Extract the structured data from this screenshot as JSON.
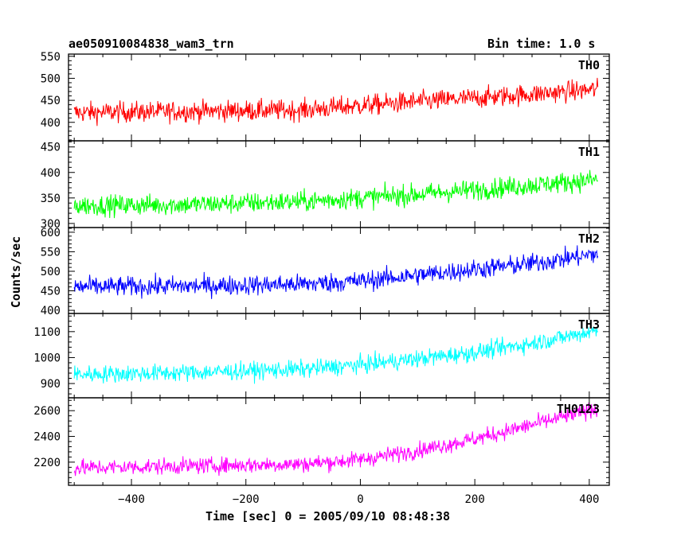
{
  "header": {
    "object": "ae050910084838_wam3_trn",
    "bin_time": "Bin time: 1.0 s"
  },
  "axes": {
    "xlabel": "Time [sec] 0 = 2005/09/10 08:48:38",
    "ylabel": "Counts/sec"
  },
  "chart_data": {
    "type": "line",
    "title": "ae050910084838_wam3_trn",
    "subtitle": "Bin time: 1.0 s",
    "xlabel": "Time [sec] 0 = 2005/09/10 08:48:38",
    "ylabel": "Counts/sec",
    "xlim": [
      -510,
      435
    ],
    "x_ticks": [
      -400,
      -200,
      0,
      200,
      400
    ],
    "x_range_data": [
      -500,
      415
    ],
    "panels": [
      {
        "name": "TH0",
        "color": "#ff0000",
        "ylim": [
          358,
          555
        ],
        "y_ticks": [
          400,
          450,
          500,
          550
        ],
        "trend": [
          [
            -500,
            422
          ],
          [
            -300,
            425
          ],
          [
            -100,
            428
          ],
          [
            0,
            438
          ],
          [
            100,
            447
          ],
          [
            200,
            455
          ],
          [
            300,
            464
          ],
          [
            415,
            475
          ]
        ],
        "noise_amplitude": 28
      },
      {
        "name": "TH1",
        "color": "#00ff00",
        "ylim": [
          292,
          462
        ],
        "y_ticks": [
          300,
          350,
          400,
          450
        ],
        "trend": [
          [
            -500,
            335
          ],
          [
            -300,
            337
          ],
          [
            -100,
            343
          ],
          [
            0,
            350
          ],
          [
            100,
            357
          ],
          [
            200,
            366
          ],
          [
            300,
            375
          ],
          [
            415,
            386
          ]
        ],
        "noise_amplitude": 24
      },
      {
        "name": "TH2",
        "color": "#0000ff",
        "ylim": [
          392,
          612
        ],
        "y_ticks": [
          400,
          450,
          500,
          550,
          600
        ],
        "trend": [
          [
            -500,
            460
          ],
          [
            -300,
            462
          ],
          [
            -100,
            467
          ],
          [
            0,
            475
          ],
          [
            100,
            490
          ],
          [
            200,
            505
          ],
          [
            300,
            520
          ],
          [
            415,
            545
          ]
        ],
        "noise_amplitude": 30
      },
      {
        "name": "TH3",
        "color": "#00ffff",
        "ylim": [
          845,
          1170
        ],
        "y_ticks": [
          900,
          1000,
          1100
        ],
        "trend": [
          [
            -500,
            935
          ],
          [
            -300,
            942
          ],
          [
            -100,
            955
          ],
          [
            0,
            972
          ],
          [
            100,
            995
          ],
          [
            200,
            1020
          ],
          [
            300,
            1055
          ],
          [
            415,
            1105
          ]
        ],
        "noise_amplitude": 40
      },
      {
        "name": "TH0123",
        "color": "#ff00ff",
        "ylim": [
          2020,
          2700
        ],
        "y_ticks": [
          2200,
          2400,
          2600
        ],
        "trend": [
          [
            -500,
            2155
          ],
          [
            -300,
            2170
          ],
          [
            -100,
            2185
          ],
          [
            0,
            2220
          ],
          [
            100,
            2290
          ],
          [
            200,
            2380
          ],
          [
            300,
            2490
          ],
          [
            415,
            2620
          ]
        ],
        "noise_amplitude": 75
      }
    ]
  }
}
